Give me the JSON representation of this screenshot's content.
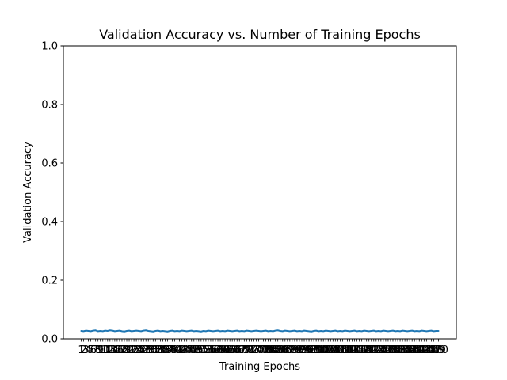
{
  "chart_data": {
    "type": "line",
    "title": "Validation Accuracy vs. Number of Training Epochs",
    "xlabel": "Training Epochs",
    "ylabel": "Validation Accuracy",
    "xlim": [
      1,
      150
    ],
    "ylim": [
      0.0,
      1.0
    ],
    "yticks": [
      "0.0",
      "0.2",
      "0.4",
      "0.6",
      "0.8",
      "1.0"
    ],
    "x": [
      1,
      2,
      3,
      4,
      5,
      6,
      7,
      8,
      9,
      10,
      11,
      12,
      13,
      14,
      15,
      16,
      17,
      18,
      19,
      20,
      21,
      22,
      23,
      24,
      25,
      26,
      27,
      28,
      29,
      30,
      31,
      32,
      33,
      34,
      35,
      36,
      37,
      38,
      39,
      40,
      41,
      42,
      43,
      44,
      45,
      46,
      47,
      48,
      49,
      50,
      51,
      52,
      53,
      54,
      55,
      56,
      57,
      58,
      59,
      60,
      61,
      62,
      63,
      64,
      65,
      66,
      67,
      68,
      69,
      70,
      71,
      72,
      73,
      74,
      75,
      76,
      77,
      78,
      79,
      80,
      81,
      82,
      83,
      84,
      85,
      86,
      87,
      88,
      89,
      90,
      91,
      92,
      93,
      94,
      95,
      96,
      97,
      98,
      99,
      100,
      101,
      102,
      103,
      104,
      105,
      106,
      107,
      108,
      109,
      110,
      111,
      112,
      113,
      114,
      115,
      116,
      117,
      118,
      119,
      120,
      121,
      122,
      123,
      124,
      125,
      126,
      127,
      128,
      129,
      130,
      131,
      132,
      133,
      134,
      135,
      136,
      137,
      138,
      139,
      140,
      141,
      142,
      143,
      144,
      145,
      146,
      147,
      148,
      149,
      150
    ],
    "series": [
      {
        "color": "#1f77b4",
        "values": [
          0.027,
          0.026,
          0.028,
          0.027,
          0.026,
          0.028,
          0.029,
          0.026,
          0.027,
          0.026,
          0.028,
          0.027,
          0.029,
          0.028,
          0.026,
          0.027,
          0.028,
          0.026,
          0.025,
          0.027,
          0.028,
          0.026,
          0.027,
          0.028,
          0.027,
          0.026,
          0.028,
          0.029,
          0.027,
          0.026,
          0.025,
          0.027,
          0.028,
          0.026,
          0.027,
          0.026,
          0.025,
          0.027,
          0.028,
          0.026,
          0.027,
          0.026,
          0.028,
          0.027,
          0.026,
          0.027,
          0.028,
          0.026,
          0.027,
          0.026,
          0.025,
          0.027,
          0.026,
          0.028,
          0.027,
          0.026,
          0.027,
          0.028,
          0.026,
          0.027,
          0.026,
          0.028,
          0.027,
          0.026,
          0.027,
          0.028,
          0.026,
          0.027,
          0.026,
          0.028,
          0.027,
          0.026,
          0.027,
          0.028,
          0.027,
          0.026,
          0.027,
          0.028,
          0.026,
          0.027,
          0.026,
          0.028,
          0.029,
          0.027,
          0.026,
          0.028,
          0.027,
          0.026,
          0.027,
          0.028,
          0.026,
          0.027,
          0.026,
          0.028,
          0.027,
          0.026,
          0.025,
          0.027,
          0.028,
          0.026,
          0.027,
          0.026,
          0.028,
          0.027,
          0.026,
          0.027,
          0.028,
          0.026,
          0.027,
          0.026,
          0.028,
          0.027,
          0.026,
          0.027,
          0.028,
          0.026,
          0.027,
          0.026,
          0.028,
          0.027,
          0.026,
          0.027,
          0.028,
          0.026,
          0.027,
          0.026,
          0.028,
          0.027,
          0.026,
          0.027,
          0.028,
          0.026,
          0.027,
          0.026,
          0.028,
          0.027,
          0.026,
          0.027,
          0.028,
          0.026,
          0.027,
          0.026,
          0.028,
          0.027,
          0.026,
          0.027,
          0.028,
          0.026,
          0.027,
          0.027
        ]
      }
    ]
  }
}
